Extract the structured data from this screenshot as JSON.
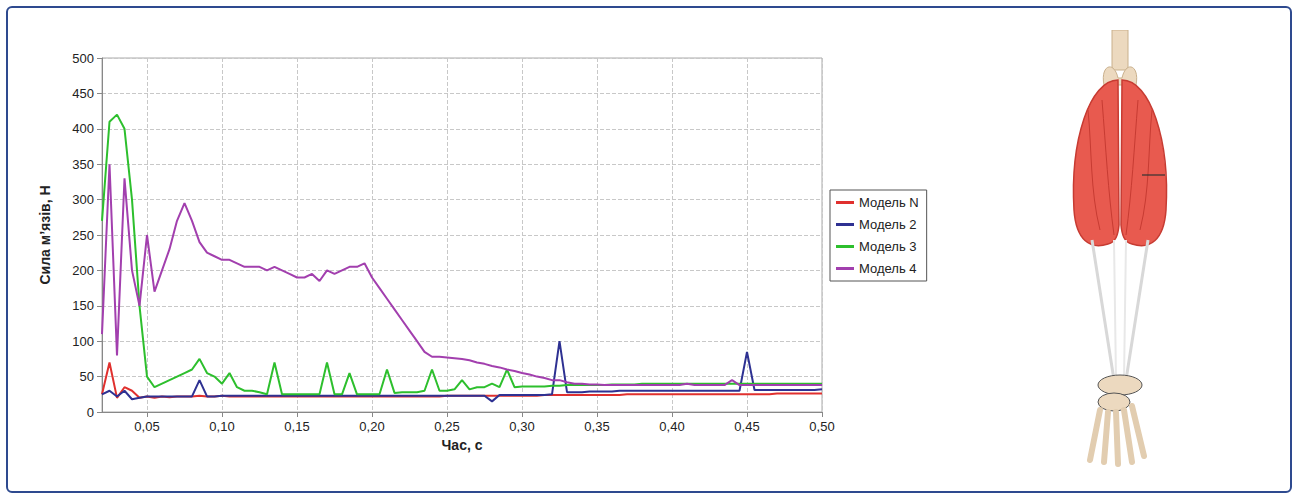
{
  "chart_data": {
    "type": "line",
    "x_label": "Час, с",
    "y_label": "Сила м’язів, Н",
    "xlim": [
      0.02,
      0.5
    ],
    "xticks": [
      {
        "value": 0.05,
        "label": "0,05"
      },
      {
        "value": 0.1,
        "label": "0,10"
      },
      {
        "value": 0.15,
        "label": "0,15"
      },
      {
        "value": 0.2,
        "label": "0,20"
      },
      {
        "value": 0.25,
        "label": "0,25"
      },
      {
        "value": 0.3,
        "label": "0,30"
      },
      {
        "value": 0.35,
        "label": "0,35"
      },
      {
        "value": 0.4,
        "label": "0,40"
      },
      {
        "value": 0.45,
        "label": "0,45"
      },
      {
        "value": 0.5,
        "label": "0,50"
      }
    ],
    "ylim": [
      0,
      500
    ],
    "yticks": [
      0,
      50,
      100,
      150,
      200,
      250,
      300,
      350,
      400,
      450,
      500
    ],
    "grid": true,
    "legend": "right",
    "x": [
      0.02,
      0.025,
      0.03,
      0.035,
      0.04,
      0.045,
      0.05,
      0.055,
      0.06,
      0.065,
      0.07,
      0.075,
      0.08,
      0.085,
      0.09,
      0.095,
      0.1,
      0.105,
      0.11,
      0.115,
      0.12,
      0.125,
      0.13,
      0.135,
      0.14,
      0.145,
      0.15,
      0.155,
      0.16,
      0.165,
      0.17,
      0.175,
      0.18,
      0.185,
      0.19,
      0.195,
      0.2,
      0.205,
      0.21,
      0.215,
      0.22,
      0.225,
      0.23,
      0.235,
      0.24,
      0.245,
      0.25,
      0.255,
      0.26,
      0.265,
      0.27,
      0.275,
      0.28,
      0.285,
      0.29,
      0.295,
      0.3,
      0.305,
      0.31,
      0.315,
      0.32,
      0.325,
      0.33,
      0.335,
      0.34,
      0.345,
      0.35,
      0.355,
      0.36,
      0.365,
      0.37,
      0.375,
      0.38,
      0.385,
      0.39,
      0.395,
      0.4,
      0.405,
      0.41,
      0.415,
      0.42,
      0.425,
      0.43,
      0.435,
      0.44,
      0.445,
      0.45,
      0.455,
      0.46,
      0.465,
      0.47,
      0.475,
      0.48,
      0.485,
      0.49,
      0.495,
      0.5
    ],
    "series": [
      {
        "name": "Модель N",
        "color": "#e0302e",
        "values": [
          25,
          70,
          20,
          35,
          30,
          20,
          22,
          20,
          22,
          21,
          22,
          22,
          22,
          23,
          22,
          22,
          23,
          22,
          22,
          22,
          22,
          22,
          22,
          22,
          22,
          22,
          22,
          22,
          22,
          22,
          22,
          22,
          22,
          22,
          22,
          22,
          22,
          22,
          22,
          22,
          22,
          22,
          22,
          22,
          22,
          22,
          23,
          23,
          23,
          23,
          23,
          23,
          23,
          23,
          23,
          23,
          23,
          23,
          23,
          24,
          24,
          24,
          24,
          24,
          24,
          24,
          24,
          24,
          24,
          24,
          25,
          25,
          25,
          25,
          25,
          25,
          25,
          25,
          25,
          25,
          25,
          25,
          25,
          25,
          25,
          25,
          25,
          25,
          25,
          25,
          26,
          26,
          26,
          26,
          26,
          26,
          26
        ]
      },
      {
        "name": "Модель 2",
        "color": "#2e3192",
        "values": [
          25,
          30,
          22,
          30,
          18,
          20,
          22,
          22,
          22,
          22,
          22,
          22,
          22,
          45,
          22,
          22,
          23,
          23,
          23,
          23,
          23,
          23,
          23,
          23,
          23,
          23,
          23,
          23,
          23,
          23,
          23,
          23,
          23,
          23,
          23,
          23,
          23,
          23,
          23,
          23,
          23,
          23,
          23,
          23,
          23,
          23,
          23,
          23,
          23,
          23,
          23,
          23,
          15,
          24,
          24,
          24,
          24,
          24,
          24,
          24,
          25,
          100,
          28,
          28,
          28,
          29,
          29,
          29,
          29,
          30,
          30,
          30,
          30,
          30,
          30,
          30,
          30,
          30,
          30,
          30,
          30,
          30,
          30,
          30,
          30,
          30,
          85,
          31,
          31,
          31,
          31,
          31,
          31,
          31,
          31,
          31,
          32
        ]
      },
      {
        "name": "Модель 3",
        "color": "#2dbf2d",
        "values": [
          270,
          410,
          420,
          400,
          300,
          150,
          50,
          35,
          40,
          45,
          50,
          55,
          60,
          75,
          55,
          50,
          40,
          55,
          35,
          30,
          30,
          28,
          25,
          70,
          25,
          25,
          25,
          25,
          25,
          25,
          70,
          25,
          25,
          55,
          25,
          25,
          25,
          25,
          60,
          27,
          28,
          28,
          28,
          30,
          60,
          30,
          30,
          32,
          45,
          32,
          35,
          35,
          40,
          35,
          60,
          35,
          36,
          36,
          36,
          36,
          37,
          37,
          38,
          38,
          38,
          38,
          38,
          38,
          39,
          39,
          39,
          39,
          40,
          40,
          40,
          40,
          40,
          40,
          40,
          40,
          40,
          40,
          40,
          40,
          40,
          40,
          40,
          40,
          40,
          40,
          40,
          40,
          40,
          40,
          40,
          40,
          40
        ]
      },
      {
        "name": "Модель 4",
        "color": "#a23fae",
        "values": [
          110,
          350,
          80,
          330,
          200,
          150,
          250,
          170,
          200,
          230,
          270,
          295,
          270,
          240,
          225,
          220,
          215,
          215,
          210,
          205,
          205,
          205,
          200,
          205,
          200,
          195,
          190,
          190,
          195,
          185,
          200,
          195,
          200,
          205,
          205,
          210,
          190,
          175,
          160,
          145,
          130,
          115,
          100,
          85,
          78,
          78,
          77,
          76,
          75,
          73,
          70,
          68,
          65,
          63,
          60,
          58,
          55,
          53,
          50,
          48,
          45,
          45,
          42,
          40,
          40,
          39,
          39,
          38,
          38,
          38,
          38,
          38,
          38,
          38,
          38,
          38,
          38,
          38,
          40,
          38,
          38,
          38,
          38,
          38,
          45,
          38,
          38,
          38,
          38,
          38,
          38,
          38,
          38,
          38,
          38,
          38,
          38
        ]
      }
    ]
  }
}
